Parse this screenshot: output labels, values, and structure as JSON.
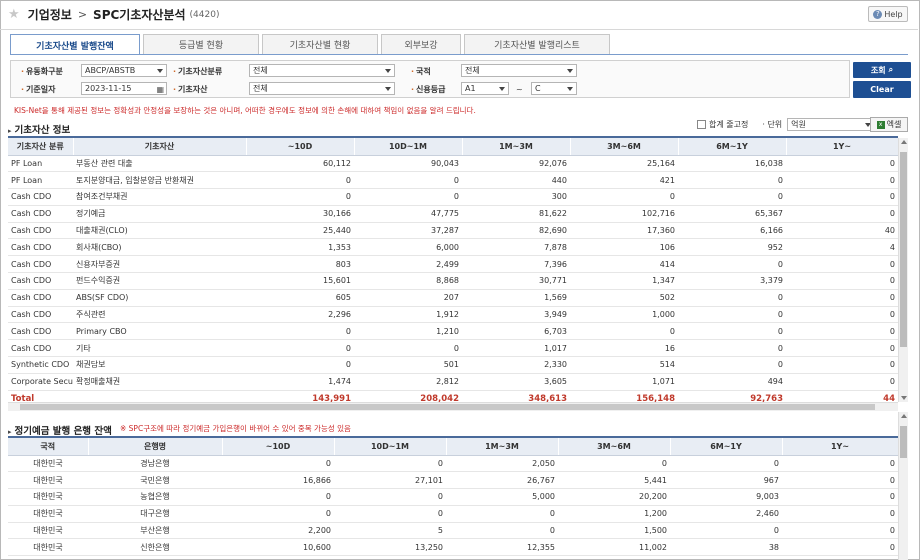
{
  "header": {
    "title": "기업정보",
    "separator": ">",
    "subtitle": "SPC기초자산분석",
    "code": "(4420)",
    "help_label": "Help"
  },
  "tabs": [
    {
      "label": "기초자산별 발행잔액",
      "active": true
    },
    {
      "label": "등급별 현황",
      "active": false
    },
    {
      "label": "기초자산별 현황",
      "active": false
    },
    {
      "label": "외부보강",
      "active": false
    },
    {
      "label": "기초자산별 발행리스트",
      "active": false
    }
  ],
  "filters": {
    "type_label": "유동화구분",
    "type_value": "ABCP/ABSTB",
    "category_label": "기초자산분류",
    "category_value": "전체",
    "country_label": "국적",
    "country_value": "전체",
    "date_label": "기준일자",
    "date_value": "2023-11-15",
    "asset_label": "기초자산",
    "asset_value": "전체",
    "rating_label": "신용등급",
    "rating_from": "A1",
    "rating_tilde": "~",
    "rating_to": "C"
  },
  "buttons": {
    "search": "조회",
    "clear": "Clear"
  },
  "notice": "KIS-Net을 통해 제공된 정보는 정확성과 안정성을 보장하는 것은 아니며, 어떠한 경우에도 정보에 의한 손해에 대하여 책임이 없음을 알려 드립니다.",
  "section1": {
    "title": "기초자산 정보",
    "fix_total_label": "합계 줄고정",
    "unit_label": "단위",
    "unit_value": "억원",
    "excel_label": "엑셀",
    "columns": [
      "기초자산 분류",
      "기초자산",
      "~10D",
      "10D~1M",
      "1M~3M",
      "3M~6M",
      "6M~1Y",
      "1Y~"
    ],
    "rows": [
      [
        "PF Loan",
        "부동산 관련 대출",
        "60,112",
        "90,043",
        "92,076",
        "25,164",
        "16,038",
        "0"
      ],
      [
        "PF Loan",
        "토지분양대금, 입찰분양금 반환채권",
        "0",
        "0",
        "440",
        "421",
        "0",
        "0"
      ],
      [
        "Cash CDO",
        "참여조건부채권",
        "0",
        "0",
        "300",
        "0",
        "0",
        "0"
      ],
      [
        "Cash CDO",
        "정기예금",
        "30,166",
        "47,775",
        "81,622",
        "102,716",
        "65,367",
        "0"
      ],
      [
        "Cash CDO",
        "대출채권(CLO)",
        "25,440",
        "37,287",
        "82,690",
        "17,360",
        "6,166",
        "40"
      ],
      [
        "Cash CDO",
        "회사채(CBO)",
        "1,353",
        "6,000",
        "7,878",
        "106",
        "952",
        "4"
      ],
      [
        "Cash CDO",
        "신용자부증권",
        "803",
        "2,499",
        "7,396",
        "414",
        "0",
        "0"
      ],
      [
        "Cash CDO",
        "펀드수익증권",
        "15,601",
        "8,868",
        "30,771",
        "1,347",
        "3,379",
        "0"
      ],
      [
        "Cash CDO",
        "ABS(SF CDO)",
        "605",
        "207",
        "1,569",
        "502",
        "0",
        "0"
      ],
      [
        "Cash CDO",
        "주식관련",
        "2,296",
        "1,912",
        "3,949",
        "1,000",
        "0",
        "0"
      ],
      [
        "Cash CDO",
        "Primary CBO",
        "0",
        "1,210",
        "6,703",
        "0",
        "0",
        "0"
      ],
      [
        "Cash CDO",
        "기타",
        "0",
        "0",
        "1,017",
        "16",
        "0",
        "0"
      ],
      [
        "Synthetic CDO",
        "채권담보",
        "0",
        "501",
        "2,330",
        "514",
        "0",
        "0"
      ],
      [
        "Corporate Securities",
        "확정매출채권",
        "1,474",
        "2,812",
        "3,605",
        "1,071",
        "494",
        "0"
      ]
    ],
    "total": [
      "Total",
      "",
      "143,991",
      "208,042",
      "348,613",
      "156,148",
      "92,763",
      "44"
    ]
  },
  "section2": {
    "title": "정기예금 발행 은행 잔액",
    "note": "※ SPC구조에 따라 정기예금 가입은행이 바뀌어 수 있어 중복 가능성 있음",
    "columns": [
      "국적",
      "은행명",
      "~10D",
      "10D~1M",
      "1M~3M",
      "3M~6M",
      "6M~1Y",
      "1Y~"
    ],
    "rows": [
      [
        "대한민국",
        "경남은행",
        "0",
        "0",
        "2,050",
        "0",
        "0",
        "0"
      ],
      [
        "대한민국",
        "국민은행",
        "16,866",
        "27,101",
        "26,767",
        "5,441",
        "967",
        "0"
      ],
      [
        "대한민국",
        "농협은행",
        "0",
        "0",
        "5,000",
        "20,200",
        "9,003",
        "0"
      ],
      [
        "대한민국",
        "대구은행",
        "0",
        "0",
        "0",
        "1,200",
        "2,460",
        "0"
      ],
      [
        "대한민국",
        "부산은행",
        "2,200",
        "5",
        "0",
        "1,500",
        "0",
        "0"
      ],
      [
        "대한민국",
        "신한은행",
        "10,600",
        "13,250",
        "12,355",
        "11,002",
        "38",
        "0"
      ]
    ]
  }
}
